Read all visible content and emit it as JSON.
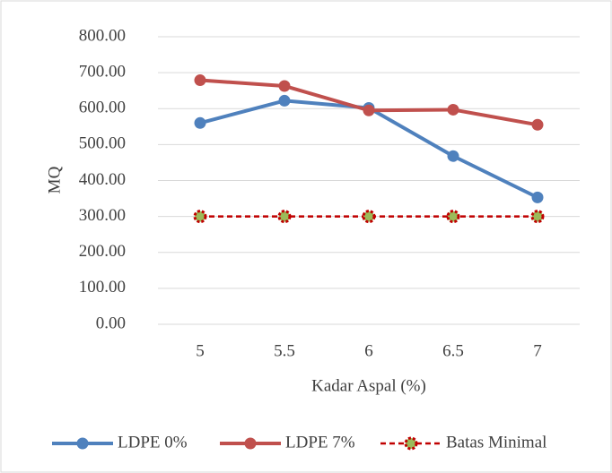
{
  "chart_data": {
    "type": "line",
    "x_label": "Kadar Aspal (%)",
    "y_label": "MQ",
    "categories": [
      "5",
      "5.5",
      "6",
      "6.5",
      "7"
    ],
    "series": [
      {
        "name": "LDPE 0%",
        "color": "#4f81bd",
        "values": [
          560,
          622,
          602,
          468,
          353
        ]
      },
      {
        "name": "LDPE 7%",
        "color": "#c0504d",
        "values": [
          679,
          663,
          595,
          597,
          555
        ]
      },
      {
        "name": "Batas Minimal",
        "color": "#c00000",
        "marker_color": "#9bbb59",
        "dashed": true,
        "values": [
          300,
          300,
          300,
          300,
          300
        ]
      }
    ],
    "ylim": [
      0,
      800
    ],
    "yticks": [
      {
        "value": 0,
        "label": "0.00"
      },
      {
        "value": 100,
        "label": "100.00"
      },
      {
        "value": 200,
        "label": "200.00"
      },
      {
        "value": 300,
        "label": "300.00"
      },
      {
        "value": 400,
        "label": "400.00"
      },
      {
        "value": 500,
        "label": "500.00"
      },
      {
        "value": 600,
        "label": "600.00"
      },
      {
        "value": 700,
        "label": "700.00"
      },
      {
        "value": 800,
        "label": "800.00"
      }
    ],
    "grid": true,
    "legend": "bottom"
  }
}
